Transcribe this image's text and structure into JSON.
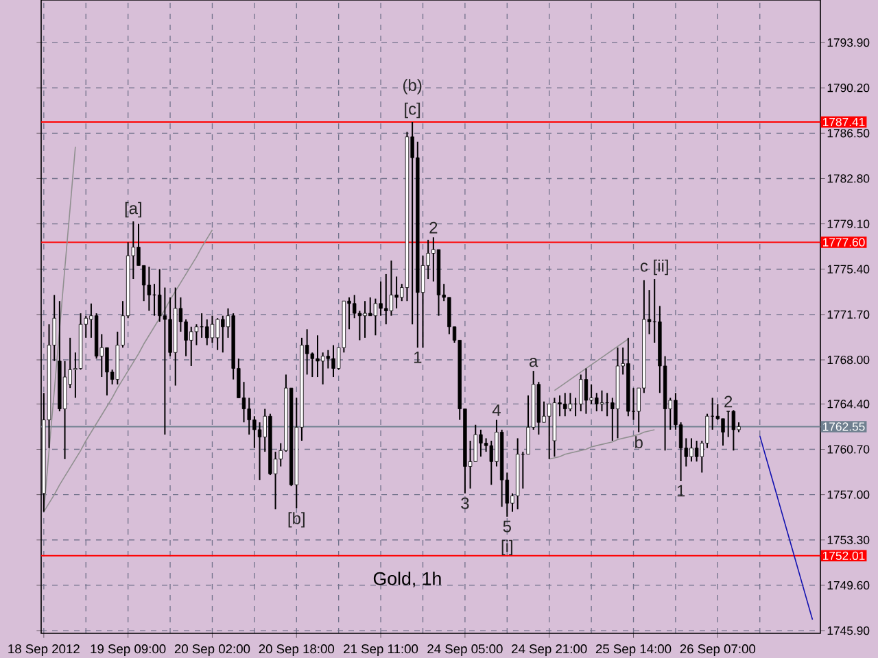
{
  "chart_data": {
    "type": "candlestick",
    "title": "Gold, 1h",
    "categories": [
      "18 Sep 2012",
      null,
      null,
      null,
      null,
      null,
      null,
      null,
      null,
      null,
      null,
      null,
      null,
      null,
      null,
      null,
      "19 Sep 09:00",
      null,
      null,
      null,
      null,
      null,
      null,
      null,
      null,
      null,
      null,
      null,
      null,
      null,
      null,
      null,
      "20 Sep 02:00",
      null,
      null,
      null,
      null,
      null,
      null,
      null,
      null,
      null,
      null,
      null,
      null,
      null,
      null,
      null,
      "20 Sep 18:00",
      null,
      null,
      null,
      null,
      null,
      null,
      null,
      null,
      null,
      null,
      null,
      null,
      null,
      null,
      null,
      "21 Sep 11:00",
      null,
      null,
      null,
      null,
      null,
      null,
      null,
      null,
      null,
      null,
      null,
      null,
      null,
      null,
      null,
      "24 Sep 05:00",
      null,
      null,
      null,
      null,
      null,
      null,
      null,
      null,
      null,
      null,
      null,
      null,
      null,
      null,
      null,
      "24 Sep 21:00",
      null,
      null,
      null,
      null,
      null,
      null,
      null,
      null,
      null,
      null,
      null,
      null,
      null,
      null,
      null,
      "25 Sep 14:00",
      null,
      null,
      null,
      null,
      null,
      null,
      null,
      null,
      null,
      null,
      null,
      null,
      null,
      null,
      null,
      "26 Sep 07:00",
      null,
      null,
      null,
      null,
      null,
      null,
      null,
      null,
      null,
      null,
      null,
      null,
      null,
      null,
      null,
      null,
      null,
      null,
      null
    ],
    "ohlc": [
      [
        1757.1,
        1765.3,
        1755.6,
        1763.1
      ],
      [
        1763.1,
        1770.9,
        1760.8,
        1769.2
      ],
      [
        1769.2,
        1773.3,
        1767.9,
        1771.4
      ],
      [
        1767.9,
        1772.8,
        1763.8,
        1764.0
      ],
      [
        1764.0,
        1767.9,
        1759.9,
        1766.6
      ],
      [
        1766.0,
        1769.8,
        1765.7,
        1767.2
      ],
      [
        1767.2,
        1768.6,
        1764.9,
        1767.3
      ],
      [
        1767.3,
        1771.8,
        1767.2,
        1770.9
      ],
      [
        1770.9,
        1771.6,
        1769.8,
        1771.4
      ],
      [
        1771.3,
        1772.6,
        1769.8,
        1771.6
      ],
      [
        1771.6,
        1771.8,
        1768.1,
        1768.3
      ],
      [
        1768.3,
        1770.1,
        1766.6,
        1769.0
      ],
      [
        1769.0,
        1769.0,
        1765.1,
        1767.0
      ],
      [
        1767.0,
        1767.2,
        1766.0,
        1766.4
      ],
      [
        1766.4,
        1770.3,
        1766.0,
        1769.2
      ],
      [
        1769.2,
        1772.8,
        1769.0,
        1771.6
      ],
      [
        1771.6,
        1777.6,
        1771.4,
        1776.5
      ],
      [
        1776.5,
        1779.3,
        1774.6,
        1777.2
      ],
      [
        1777.2,
        1779.1,
        1775.7,
        1775.7
      ],
      [
        1775.7,
        1775.7,
        1772.8,
        1774.1
      ],
      [
        1774.1,
        1775.6,
        1772.0,
        1773.3
      ],
      [
        1773.3,
        1774.2,
        1771.6,
        1773.3
      ],
      [
        1773.3,
        1775.4,
        1771.1,
        1771.6
      ],
      [
        1771.6,
        1773.9,
        1761.9,
        1771.3
      ],
      [
        1771.3,
        1773.1,
        1768.3,
        1768.6
      ],
      [
        1768.6,
        1773.9,
        1765.9,
        1772.2
      ],
      [
        1772.2,
        1773.1,
        1770.3,
        1771.1
      ],
      [
        1771.1,
        1771.3,
        1768.3,
        1769.6
      ],
      [
        1769.6,
        1770.7,
        1767.5,
        1770.3
      ],
      [
        1770.3,
        1770.9,
        1769.2,
        1770.7
      ],
      [
        1770.7,
        1771.8,
        1769.8,
        1770.7
      ],
      [
        1770.7,
        1771.3,
        1769.2,
        1769.8
      ],
      [
        1769.8,
        1771.6,
        1769.4,
        1770.9
      ],
      [
        1769.8,
        1771.4,
        1768.8,
        1771.3
      ],
      [
        1771.3,
        1771.6,
        1768.6,
        1770.7
      ],
      [
        1770.7,
        1772.2,
        1769.8,
        1771.6
      ],
      [
        1771.6,
        1771.8,
        1766.4,
        1767.3
      ],
      [
        1767.3,
        1768.1,
        1764.9,
        1764.9
      ],
      [
        1764.9,
        1766.2,
        1762.9,
        1764.0
      ],
      [
        1764.0,
        1764.9,
        1761.9,
        1763.1
      ],
      [
        1763.1,
        1763.4,
        1760.8,
        1762.3
      ],
      [
        1762.3,
        1762.9,
        1758.2,
        1761.7
      ],
      [
        1761.7,
        1764.0,
        1760.5,
        1763.4
      ],
      [
        1763.4,
        1763.6,
        1758.6,
        1758.7
      ],
      [
        1758.7,
        1760.5,
        1755.8,
        1759.9
      ],
      [
        1759.9,
        1761.2,
        1759.3,
        1760.6
      ],
      [
        1760.6,
        1766.8,
        1760.5,
        1765.7
      ],
      [
        1765.7,
        1765.7,
        1757.7,
        1757.8
      ],
      [
        1757.8,
        1764.9,
        1755.9,
        1762.5
      ],
      [
        1762.5,
        1769.8,
        1761.4,
        1769.2
      ],
      [
        1769.2,
        1770.5,
        1766.8,
        1768.5
      ],
      [
        1768.5,
        1768.6,
        1766.6,
        1768.1
      ],
      [
        1768.1,
        1770.0,
        1766.6,
        1767.9
      ],
      [
        1767.9,
        1768.6,
        1766.0,
        1768.3
      ],
      [
        1768.3,
        1768.8,
        1767.3,
        1768.1
      ],
      [
        1768.1,
        1769.2,
        1766.6,
        1767.3
      ],
      [
        1767.3,
        1769.0,
        1767.2,
        1769.0
      ],
      [
        1769.0,
        1772.8,
        1768.6,
        1772.8
      ],
      [
        1772.8,
        1773.1,
        1770.5,
        1772.6
      ],
      [
        1772.6,
        1773.3,
        1771.4,
        1771.8
      ],
      [
        1771.8,
        1772.0,
        1769.6,
        1771.6
      ],
      [
        1771.6,
        1772.8,
        1769.8,
        1771.8
      ],
      [
        1771.8,
        1773.1,
        1771.6,
        1771.6
      ],
      [
        1771.6,
        1773.0,
        1770.0,
        1772.6
      ],
      [
        1772.6,
        1774.4,
        1771.6,
        1772.2
      ],
      [
        1772.2,
        1775.0,
        1770.9,
        1772.0
      ],
      [
        1772.0,
        1776.1,
        1771.6,
        1773.3
      ],
      [
        1773.3,
        1774.8,
        1772.2,
        1773.1
      ],
      [
        1773.1,
        1774.2,
        1772.8,
        1773.9
      ],
      [
        1773.9,
        1786.6,
        1772.8,
        1786.2
      ],
      [
        1786.2,
        1787.41,
        1770.9,
        1784.5
      ],
      [
        1784.5,
        1785.8,
        1769.0,
        1773.5
      ],
      [
        1773.5,
        1776.5,
        1769.0,
        1775.7
      ],
      [
        1775.7,
        1777.8,
        1774.6,
        1776.7
      ],
      [
        1776.7,
        1778.0,
        1774.4,
        1777.0
      ],
      [
        1777.0,
        1777.0,
        1771.6,
        1773.3
      ],
      [
        1773.3,
        1774.2,
        1772.8,
        1773.1
      ],
      [
        1773.1,
        1773.1,
        1770.1,
        1770.7
      ],
      [
        1770.7,
        1770.7,
        1769.4,
        1769.6
      ],
      [
        1769.6,
        1769.6,
        1763.1,
        1764.0
      ],
      [
        1764.0,
        1764.0,
        1757.1,
        1759.3
      ],
      [
        1759.3,
        1761.4,
        1757.5,
        1759.7
      ],
      [
        1759.7,
        1762.7,
        1759.7,
        1761.9
      ],
      [
        1761.9,
        1762.3,
        1760.1,
        1761.2
      ],
      [
        1761.2,
        1761.6,
        1760.5,
        1761.0
      ],
      [
        1761.0,
        1761.4,
        1757.8,
        1759.7
      ],
      [
        1759.7,
        1763.1,
        1759.3,
        1762.1
      ],
      [
        1762.1,
        1762.3,
        1756.0,
        1758.2
      ],
      [
        1758.2,
        1758.8,
        1755.2,
        1756.3
      ],
      [
        1756.3,
        1757.1,
        1755.6,
        1756.9
      ],
      [
        1756.9,
        1761.6,
        1755.8,
        1760.3
      ],
      [
        1760.3,
        1760.5,
        1757.5,
        1760.3
      ],
      [
        1760.3,
        1765.1,
        1760.3,
        1762.5
      ],
      [
        1762.5,
        1767.1,
        1762.3,
        1766.0
      ],
      [
        1766.0,
        1766.2,
        1761.9,
        1762.9
      ],
      [
        1762.9,
        1764.6,
        1762.9,
        1763.4
      ],
      [
        1763.4,
        1764.4,
        1759.9,
        1764.4
      ],
      [
        1761.4,
        1764.9,
        1760.1,
        1764.5
      ],
      [
        1764.5,
        1765.1,
        1763.4,
        1764.4
      ],
      [
        1764.4,
        1765.3,
        1763.4,
        1764.0
      ],
      [
        1764.0,
        1765.3,
        1763.8,
        1764.4
      ],
      [
        1764.4,
        1764.9,
        1763.4,
        1764.4
      ],
      [
        1764.4,
        1766.8,
        1763.8,
        1766.4
      ],
      [
        1766.4,
        1767.3,
        1763.6,
        1764.7
      ],
      [
        1764.7,
        1766.0,
        1764.4,
        1764.9
      ],
      [
        1764.9,
        1765.3,
        1763.8,
        1764.4
      ],
      [
        1764.4,
        1765.5,
        1763.8,
        1764.5
      ],
      [
        1764.5,
        1765.3,
        1763.4,
        1764.5
      ],
      [
        1764.5,
        1764.9,
        1761.4,
        1764.0
      ],
      [
        1764.0,
        1769.0,
        1761.6,
        1767.5
      ],
      [
        1767.5,
        1769.0,
        1766.8,
        1767.7
      ],
      [
        1767.7,
        1769.8,
        1763.4,
        1763.8
      ],
      [
        1763.8,
        1765.7,
        1763.1,
        1763.8
      ],
      [
        1763.8,
        1765.7,
        1762.1,
        1765.7
      ],
      [
        1765.7,
        1774.5,
        1765.3,
        1771.3
      ],
      [
        1771.3,
        1773.7,
        1770.1,
        1771.1
      ],
      [
        1771.1,
        1774.6,
        1769.4,
        1771.1
      ],
      [
        1771.1,
        1772.4,
        1765.3,
        1767.5
      ],
      [
        1767.5,
        1768.3,
        1760.6,
        1764.0
      ],
      [
        1764.0,
        1764.9,
        1762.3,
        1764.7
      ],
      [
        1764.7,
        1765.3,
        1762.3,
        1762.7
      ],
      [
        1762.7,
        1762.9,
        1758.1,
        1760.8
      ],
      [
        1760.8,
        1761.6,
        1759.3,
        1760.1
      ],
      [
        1760.1,
        1761.6,
        1759.7,
        1760.8
      ],
      [
        1760.8,
        1761.4,
        1759.7,
        1760.1
      ],
      [
        1760.1,
        1761.4,
        1758.8,
        1761.2
      ],
      [
        1761.2,
        1763.6,
        1760.8,
        1763.4
      ],
      [
        1763.4,
        1764.9,
        1762.3,
        1763.4
      ],
      [
        1763.4,
        1764.4,
        1763.1,
        1763.2
      ],
      [
        1763.2,
        1763.2,
        1761.0,
        1762.1
      ],
      [
        1763.8,
        1763.8,
        1761.7,
        1763.8
      ],
      [
        1763.8,
        1763.9,
        1760.6,
        1762.3
      ],
      [
        1762.3,
        1762.9,
        1762.1,
        1762.55
      ],
      null,
      null,
      null,
      null,
      null,
      null,
      null,
      null,
      null,
      null,
      null,
      null,
      null,
      null,
      null
    ],
    "series": [
      {
        "type": "line",
        "color": "#909090",
        "values": [
          1755.6,
          1760.6,
          1765.5,
          1770.5,
          1775.5,
          1780.4,
          1785.4,
          null,
          null,
          null,
          null,
          null,
          null,
          null,
          null,
          null,
          null,
          null,
          null,
          null,
          null,
          null,
          null,
          null,
          null,
          null,
          null,
          null,
          null,
          null,
          null,
          null,
          null,
          null,
          null,
          null,
          null,
          null,
          null,
          null,
          null,
          null,
          null,
          null,
          null,
          null,
          null,
          null,
          null,
          null,
          null,
          null,
          null,
          null,
          null,
          null,
          null,
          null,
          null,
          null,
          null,
          null,
          null,
          null,
          null,
          null,
          null,
          null,
          null,
          null,
          null,
          null,
          null,
          null,
          null,
          null,
          null,
          null,
          null,
          null,
          null,
          null,
          null,
          null,
          null,
          null,
          null,
          null,
          null,
          null,
          null,
          null,
          null,
          null,
          null,
          null,
          null,
          null,
          null,
          null,
          null,
          null,
          null,
          null,
          null,
          null,
          null,
          null,
          null,
          null,
          null,
          null,
          null,
          null,
          null,
          null,
          null,
          null,
          null,
          null,
          null,
          null,
          null,
          null,
          null,
          null,
          null,
          null,
          null,
          null,
          null,
          null,
          null,
          null,
          null,
          null,
          null,
          null,
          null,
          null,
          null,
          null,
          null,
          null,
          null,
          null,
          null,
          null
        ]
      },
      {
        "type": "line",
        "color": "#909090",
        "values": [
          1755.6,
          1756.3,
          1757.0,
          1757.8,
          1758.5,
          1759.2,
          1759.9,
          1760.6,
          1761.4,
          1762.1,
          1762.8,
          1763.5,
          1764.2,
          1764.9,
          1765.7,
          1766.4,
          1767.1,
          1767.8,
          1768.5,
          1769.3,
          1770.0,
          1770.7,
          1771.4,
          1772.1,
          1772.9,
          1773.6,
          1774.3,
          1775.0,
          1775.7,
          1776.4,
          1777.2,
          1777.9,
          1778.6,
          null,
          null,
          null,
          null,
          null,
          null,
          null,
          null,
          null,
          null,
          null,
          null,
          null,
          null,
          null,
          null,
          null,
          null,
          null,
          null,
          null,
          null,
          null,
          null,
          null,
          null,
          null,
          null,
          null,
          null,
          null,
          null,
          null,
          null,
          null,
          null,
          null,
          null,
          null,
          null,
          null,
          null,
          null,
          null,
          null,
          null,
          null,
          null,
          null,
          null,
          null,
          null,
          null,
          null,
          null,
          null,
          null,
          null,
          null,
          null,
          null,
          null,
          null,
          null,
          null,
          null,
          null,
          null,
          null,
          null,
          null,
          null,
          null,
          null,
          null,
          null,
          null,
          null,
          null,
          null,
          null,
          null,
          null,
          null,
          null,
          null,
          null,
          null,
          null,
          null,
          null,
          null,
          null,
          null,
          null,
          null,
          null,
          null,
          null,
          null,
          null,
          null,
          null,
          null,
          null,
          null,
          null,
          null,
          null,
          null,
          null,
          null,
          null,
          null,
          null
        ]
      },
      {
        "type": "line",
        "color": "#909090",
        "values": [
          null,
          null,
          null,
          null,
          null,
          null,
          null,
          null,
          null,
          null,
          null,
          null,
          null,
          null,
          null,
          null,
          null,
          null,
          null,
          null,
          null,
          null,
          null,
          null,
          null,
          null,
          null,
          null,
          null,
          null,
          null,
          null,
          null,
          null,
          null,
          null,
          null,
          null,
          null,
          null,
          null,
          null,
          null,
          null,
          null,
          null,
          null,
          null,
          null,
          null,
          null,
          null,
          null,
          null,
          null,
          null,
          null,
          null,
          null,
          null,
          null,
          null,
          null,
          null,
          null,
          null,
          null,
          null,
          null,
          null,
          null,
          null,
          null,
          null,
          null,
          null,
          null,
          null,
          null,
          null,
          null,
          null,
          null,
          null,
          null,
          null,
          null,
          null,
          null,
          null,
          null,
          null,
          null,
          null,
          null,
          null,
          null,
          1765.5,
          1765.8,
          1766.1,
          1766.4,
          1766.7,
          1767.0,
          1767.3,
          1767.6,
          1767.9,
          1768.2,
          1768.5,
          1768.8,
          1769.1,
          1769.4,
          1769.7,
          null,
          null,
          null,
          null,
          null,
          null,
          null,
          null,
          null,
          null,
          null,
          null,
          null,
          null,
          null,
          null,
          null,
          null,
          null,
          null,
          null,
          null,
          null,
          null,
          null,
          null,
          null,
          null,
          null,
          null,
          null,
          null,
          null,
          null,
          null,
          null
        ]
      },
      {
        "type": "line",
        "color": "#909090",
        "values": [
          null,
          null,
          null,
          null,
          null,
          null,
          null,
          null,
          null,
          null,
          null,
          null,
          null,
          null,
          null,
          null,
          null,
          null,
          null,
          null,
          null,
          null,
          null,
          null,
          null,
          null,
          null,
          null,
          null,
          null,
          null,
          null,
          null,
          null,
          null,
          null,
          null,
          null,
          null,
          null,
          null,
          null,
          null,
          null,
          null,
          null,
          null,
          null,
          null,
          null,
          null,
          null,
          null,
          null,
          null,
          null,
          null,
          null,
          null,
          null,
          null,
          null,
          null,
          null,
          null,
          null,
          null,
          null,
          null,
          null,
          null,
          null,
          null,
          null,
          null,
          null,
          null,
          null,
          null,
          null,
          null,
          null,
          null,
          null,
          null,
          null,
          null,
          null,
          null,
          null,
          null,
          null,
          null,
          null,
          null,
          null,
          1759.9,
          1760.0,
          1760.1,
          1760.3,
          1760.4,
          1760.5,
          1760.6,
          1760.7,
          1760.9,
          1761.0,
          1761.1,
          1761.2,
          1761.3,
          1761.5,
          1761.6,
          1761.7,
          1761.8,
          1761.9,
          1762.1,
          1762.2,
          1762.3,
          null,
          null,
          null,
          null,
          null,
          null,
          null,
          null,
          null,
          null,
          null,
          null,
          null,
          null,
          null,
          null,
          null,
          null,
          null,
          null,
          null,
          null,
          null,
          null,
          null,
          null,
          null,
          null,
          null,
          null,
          null
        ]
      },
      {
        "type": "line",
        "color": "#1010b0",
        "values": [
          null,
          null,
          null,
          null,
          null,
          null,
          null,
          null,
          null,
          null,
          null,
          null,
          null,
          null,
          null,
          null,
          null,
          null,
          null,
          null,
          null,
          null,
          null,
          null,
          null,
          null,
          null,
          null,
          null,
          null,
          null,
          null,
          null,
          null,
          null,
          null,
          null,
          null,
          null,
          null,
          null,
          null,
          null,
          null,
          null,
          null,
          null,
          null,
          null,
          null,
          null,
          null,
          null,
          null,
          null,
          null,
          null,
          null,
          null,
          null,
          null,
          null,
          null,
          null,
          null,
          null,
          null,
          null,
          null,
          null,
          null,
          null,
          null,
          null,
          null,
          null,
          null,
          null,
          null,
          null,
          null,
          null,
          null,
          null,
          null,
          null,
          null,
          null,
          null,
          null,
          null,
          null,
          null,
          null,
          null,
          null,
          null,
          null,
          null,
          null,
          null,
          null,
          null,
          null,
          null,
          null,
          null,
          null,
          null,
          null,
          null,
          null,
          null,
          null,
          null,
          null,
          null,
          null,
          null,
          null,
          null,
          null,
          null,
          null,
          null,
          null,
          null,
          null,
          null,
          null,
          null,
          null,
          null,
          null,
          null,
          null,
          1761.8,
          1760.3,
          1758.8,
          1757.3,
          1755.8,
          1754.3,
          1752.8,
          1751.3,
          1749.8,
          1748.3,
          1746.8,
          null
        ]
      }
    ],
    "ylim": [
      1745.68,
      1797.37
    ],
    "yticks": [
      {
        "value": 1793.9,
        "label": "1793.90"
      },
      {
        "value": 1790.2,
        "label": "1790.20"
      },
      {
        "value": 1786.5,
        "label": "1786.50"
      },
      {
        "value": 1782.8,
        "label": "1782.80"
      },
      {
        "value": 1779.1,
        "label": "1779.10"
      },
      {
        "value": 1775.4,
        "label": "1775.40"
      },
      {
        "value": 1771.7,
        "label": "1771.70"
      },
      {
        "value": 1768.0,
        "label": "1768.00"
      },
      {
        "value": 1764.4,
        "label": "1764.40"
      },
      {
        "value": 1760.7,
        "label": "1760.70"
      },
      {
        "value": 1757.0,
        "label": "1757.00"
      },
      {
        "value": 1753.3,
        "label": "1753.30"
      },
      {
        "value": 1749.6,
        "label": "1749.60"
      },
      {
        "value": 1745.9,
        "label": "1745.90"
      }
    ],
    "ref_lines": [
      {
        "axis": "y",
        "value": 1787.41,
        "label": "1787.41",
        "color": "#ff0000"
      },
      {
        "axis": "y",
        "value": 1777.6,
        "label": "1777.60",
        "color": "#ff0000"
      },
      {
        "axis": "y",
        "value": 1762.55,
        "label": "1762.55",
        "color": "#708090"
      },
      {
        "axis": "y",
        "value": 1752.01,
        "label": "1752.01",
        "color": "#ff0000"
      }
    ],
    "annotations": [
      {
        "text": "[c]",
        "y": 1787.41
      },
      {
        "text": "(b)",
        "y": 1787.41
      },
      {
        "text": "[a]",
        "y": 1779.3
      },
      {
        "text": "[b]",
        "y": 1755.9
      },
      {
        "text": "2",
        "y": 1778.0
      },
      {
        "text": "1",
        "y": 1769.0
      },
      {
        "text": "3",
        "y": 1757.1
      },
      {
        "text": "4",
        "y": 1763.1
      },
      {
        "text": "5",
        "y": 1755.2
      },
      {
        "text": "[i]",
        "y": 1755.2
      },
      {
        "text": "a",
        "y": 1767.1
      },
      {
        "text": "b",
        "y": 1762.1
      },
      {
        "text": "c [ii]",
        "y": 1774.6
      },
      {
        "text": "1",
        "y": 1758.1
      },
      {
        "text": "2",
        "y": 1763.8
      }
    ],
    "grid": true
  }
}
